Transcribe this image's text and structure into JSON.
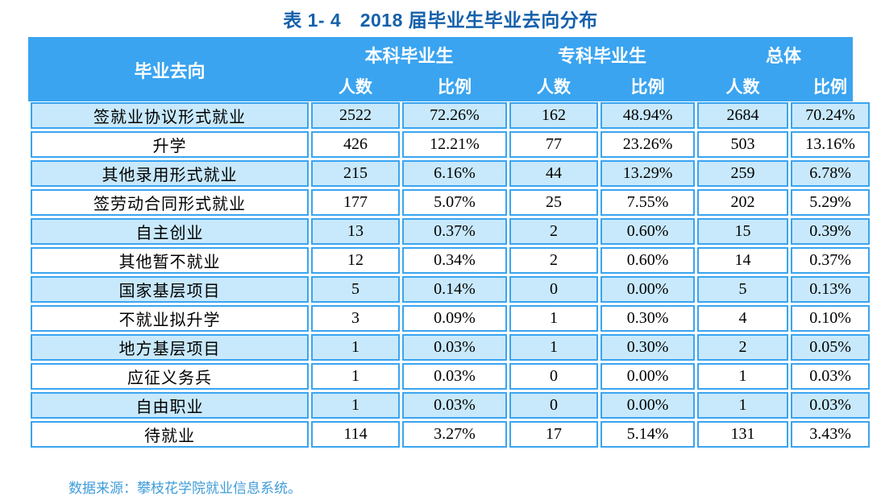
{
  "title": "表 1- 4　2018 届毕业生毕业去向分布",
  "footer": "数据来源：攀枝花学院就业信息系统。",
  "colors": {
    "header_bg": "#3aa4f0",
    "row_alt_bg": "#c8e9fc",
    "border": "#3aa4f0",
    "title_text": "#1560ab",
    "footer_text": "#3f9cda",
    "header_text": "#ffffff",
    "body_text": "#000000"
  },
  "table": {
    "corner_header": "毕业去向",
    "groups": [
      {
        "label": "本科毕业生"
      },
      {
        "label": "专科毕业生"
      },
      {
        "label": "总体"
      }
    ],
    "sub_headers": [
      "人数",
      "比例"
    ],
    "rows": [
      {
        "category": "签就业协议形式就业",
        "values": [
          "2522",
          "72.26%",
          "162",
          "48.94%",
          "2684",
          "70.24%"
        ]
      },
      {
        "category": "升学",
        "values": [
          "426",
          "12.21%",
          "77",
          "23.26%",
          "503",
          "13.16%"
        ]
      },
      {
        "category": "其他录用形式就业",
        "values": [
          "215",
          "6.16%",
          "44",
          "13.29%",
          "259",
          "6.78%"
        ]
      },
      {
        "category": "签劳动合同形式就业",
        "values": [
          "177",
          "5.07%",
          "25",
          "7.55%",
          "202",
          "5.29%"
        ]
      },
      {
        "category": "自主创业",
        "values": [
          "13",
          "0.37%",
          "2",
          "0.60%",
          "15",
          "0.39%"
        ]
      },
      {
        "category": "其他暂不就业",
        "values": [
          "12",
          "0.34%",
          "2",
          "0.60%",
          "14",
          "0.37%"
        ]
      },
      {
        "category": "国家基层项目",
        "values": [
          "5",
          "0.14%",
          "0",
          "0.00%",
          "5",
          "0.13%"
        ]
      },
      {
        "category": "不就业拟升学",
        "values": [
          "3",
          "0.09%",
          "1",
          "0.30%",
          "4",
          "0.10%"
        ]
      },
      {
        "category": "地方基层项目",
        "values": [
          "1",
          "0.03%",
          "1",
          "0.30%",
          "2",
          "0.05%"
        ]
      },
      {
        "category": "应征义务兵",
        "values": [
          "1",
          "0.03%",
          "0",
          "0.00%",
          "1",
          "0.03%"
        ]
      },
      {
        "category": "自由职业",
        "values": [
          "1",
          "0.03%",
          "0",
          "0.00%",
          "1",
          "0.03%"
        ]
      },
      {
        "category": "待就业",
        "values": [
          "114",
          "3.27%",
          "17",
          "5.14%",
          "131",
          "3.43%"
        ]
      }
    ]
  },
  "chart_data": {
    "type": "table",
    "title": "表 1- 4　2018 届毕业生毕业去向分布",
    "columns": [
      "毕业去向",
      "本科毕业生-人数",
      "本科毕业生-比例",
      "专科毕业生-人数",
      "专科毕业生-比例",
      "总体-人数",
      "总体-比例"
    ],
    "rows": [
      [
        "签就业协议形式就业",
        2522,
        "72.26%",
        162,
        "48.94%",
        2684,
        "70.24%"
      ],
      [
        "升学",
        426,
        "12.21%",
        77,
        "23.26%",
        503,
        "13.16%"
      ],
      [
        "其他录用形式就业",
        215,
        "6.16%",
        44,
        "13.29%",
        259,
        "6.78%"
      ],
      [
        "签劳动合同形式就业",
        177,
        "5.07%",
        25,
        "7.55%",
        202,
        "5.29%"
      ],
      [
        "自主创业",
        13,
        "0.37%",
        2,
        "0.60%",
        15,
        "0.39%"
      ],
      [
        "其他暂不就业",
        12,
        "0.34%",
        2,
        "0.60%",
        14,
        "0.37%"
      ],
      [
        "国家基层项目",
        5,
        "0.14%",
        0,
        "0.00%",
        5,
        "0.13%"
      ],
      [
        "不就业拟升学",
        3,
        "0.09%",
        1,
        "0.30%",
        4,
        "0.10%"
      ],
      [
        "地方基层项目",
        1,
        "0.03%",
        1,
        "0.30%",
        2,
        "0.05%"
      ],
      [
        "应征义务兵",
        1,
        "0.03%",
        0,
        "0.00%",
        1,
        "0.03%"
      ],
      [
        "自由职业",
        1,
        "0.03%",
        0,
        "0.00%",
        1,
        "0.03%"
      ],
      [
        "待就业",
        114,
        "3.27%",
        17,
        "5.14%",
        131,
        "3.43%"
      ]
    ]
  }
}
